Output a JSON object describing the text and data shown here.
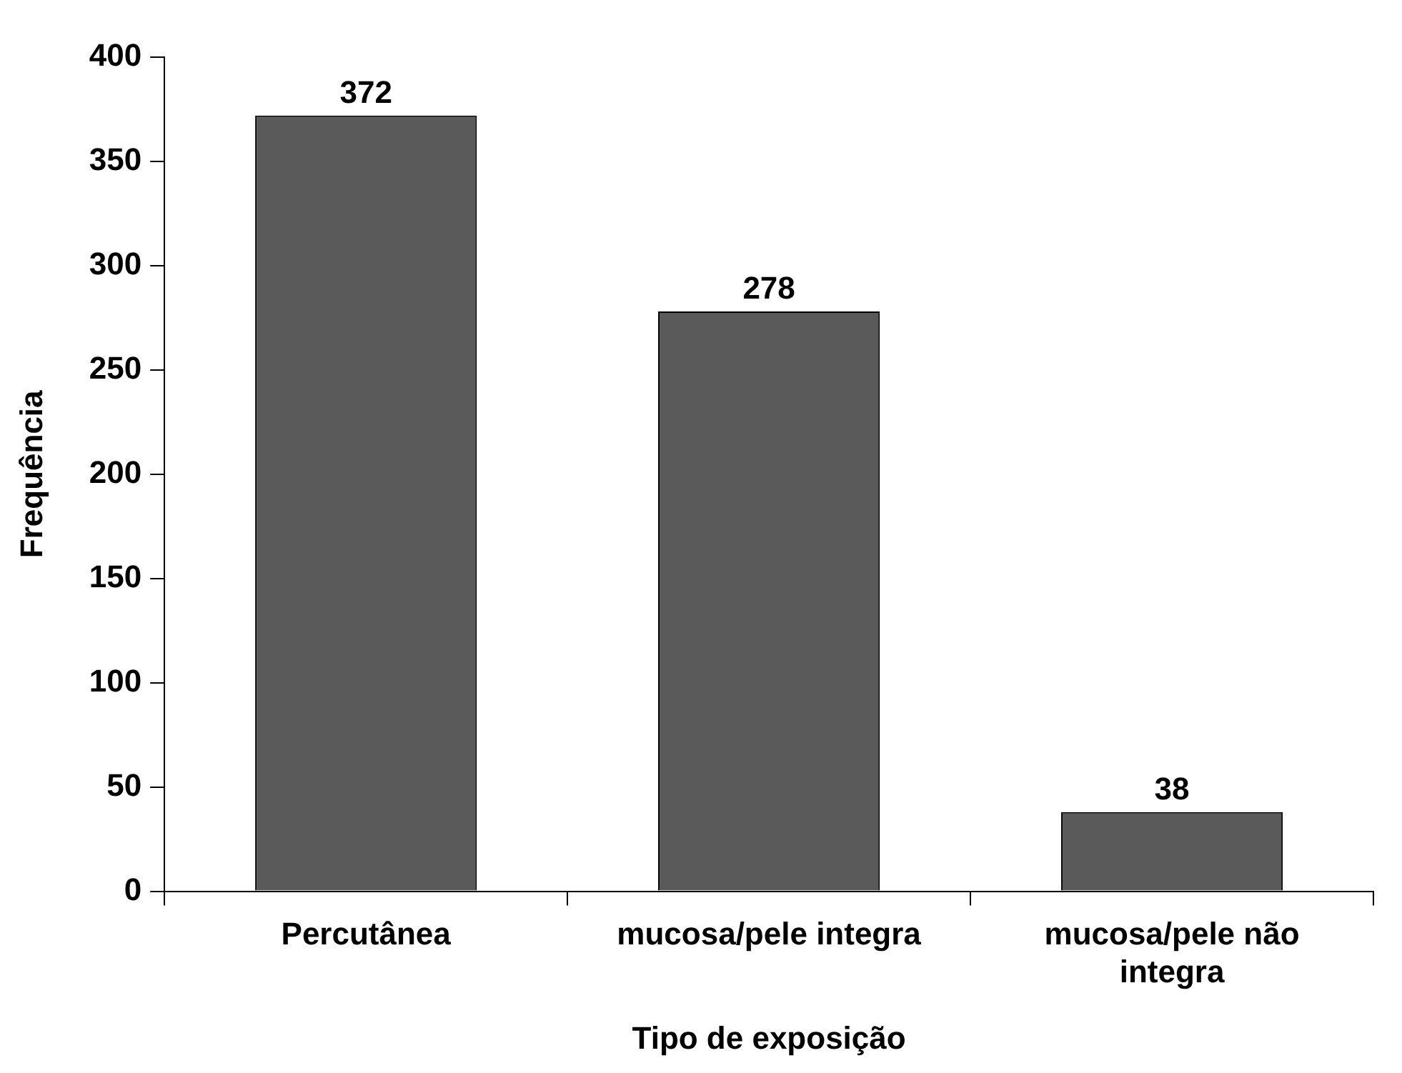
{
  "chart_data": {
    "type": "bar",
    "xlabel": "Tipo de exposição",
    "ylabel": "Frequência",
    "categories": [
      "Percutânea",
      "mucosa/pele integra",
      "mucosa/pele não integra"
    ],
    "values": [
      372,
      278,
      38
    ],
    "color": "#5a5a5a",
    "ylim": [
      0,
      400
    ],
    "yticks": [
      0,
      50,
      100,
      150,
      200,
      250,
      300,
      350,
      400
    ],
    "grid": false,
    "legend": false,
    "data_labels": true
  }
}
